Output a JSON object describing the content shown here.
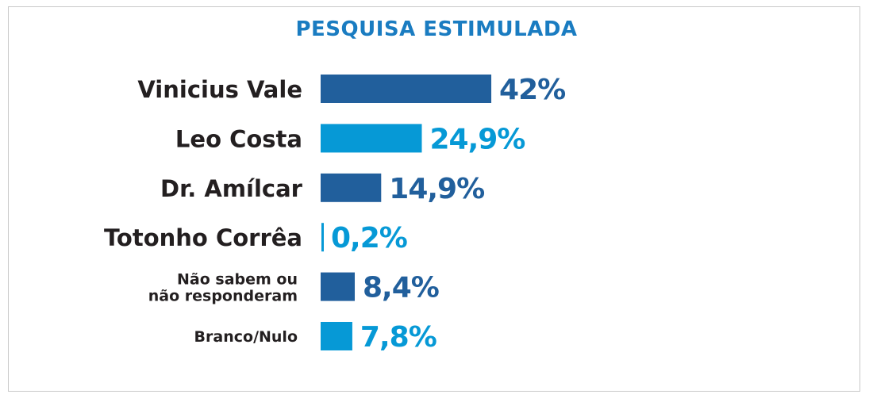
{
  "chart_data": {
    "type": "bar",
    "orientation": "horizontal",
    "title": "PESQUISA ESTIMULADA",
    "categories": [
      [
        "Vinicius Vale"
      ],
      [
        "Leo Costa"
      ],
      [
        "Dr. Amílcar"
      ],
      [
        "Totonho Corrêa"
      ],
      [
        "Não sabem ou",
        "não responderam"
      ],
      [
        "Branco/Nulo"
      ]
    ],
    "values": [
      42,
      24.9,
      14.9,
      0.2,
      8.4,
      7.8
    ],
    "value_labels": [
      "42%",
      "24,9%",
      "14,9%",
      "0,2%",
      "8,4%",
      "7,8%"
    ],
    "colors": [
      "#215f9c",
      "#0699d6",
      "#215f9c",
      "#0699d6",
      "#215f9c",
      "#0699d6"
    ],
    "xlabel": "",
    "ylabel": "",
    "xlim": [
      0,
      100
    ],
    "grid": false,
    "legend": "none"
  }
}
